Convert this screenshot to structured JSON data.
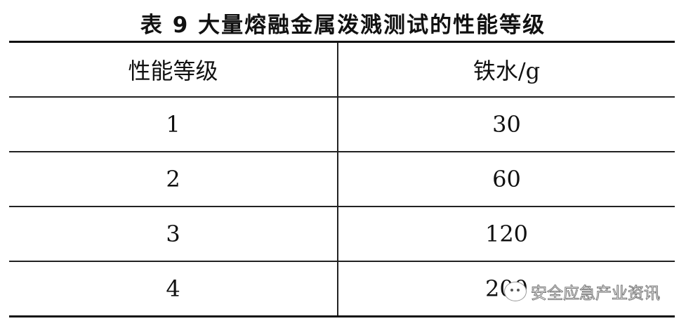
{
  "title": "表 9  大量熔融金属泼溅测试的性能等级",
  "table": {
    "headers": [
      "性能等级",
      "铁水/g"
    ],
    "rows": [
      [
        "1",
        "30"
      ],
      [
        "2",
        "60"
      ],
      [
        "3",
        "120"
      ],
      [
        "4",
        "200"
      ]
    ]
  },
  "watermark": {
    "text": "安全应急产业资讯",
    "icon": "wechat-icon"
  }
}
